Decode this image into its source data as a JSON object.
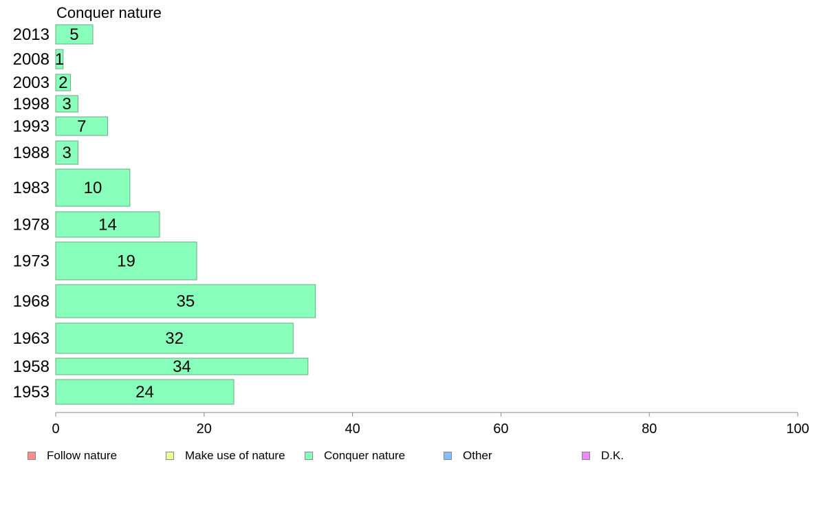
{
  "chart_data": {
    "type": "bar",
    "orientation": "horizontal",
    "panel_title": "Conquer nature",
    "categories": [
      "2013",
      "2008",
      "2003",
      "1998",
      "1993",
      "1988",
      "1983",
      "1978",
      "1973",
      "1968",
      "1963",
      "1958",
      "1953"
    ],
    "series": [
      {
        "name": "Conquer nature",
        "color": "#88ffbb",
        "values": [
          5,
          1,
          2,
          3,
          7,
          3,
          10,
          14,
          19,
          35,
          32,
          34,
          24
        ]
      }
    ],
    "xlim": [
      0,
      100
    ],
    "xticks": [
      "0",
      "20",
      "40",
      "60",
      "80",
      "100"
    ],
    "grid": false,
    "legend": {
      "placement": "bottom",
      "entries": [
        {
          "label": "Follow nature",
          "color": "#ff8c8c"
        },
        {
          "label": "Make use of nature",
          "color": "#eeff99"
        },
        {
          "label": "Conquer nature",
          "color": "#88ffbb"
        },
        {
          "label": "Other",
          "color": "#88bbff"
        },
        {
          "label": "D.K.",
          "color": "#ee88ff"
        }
      ]
    }
  }
}
